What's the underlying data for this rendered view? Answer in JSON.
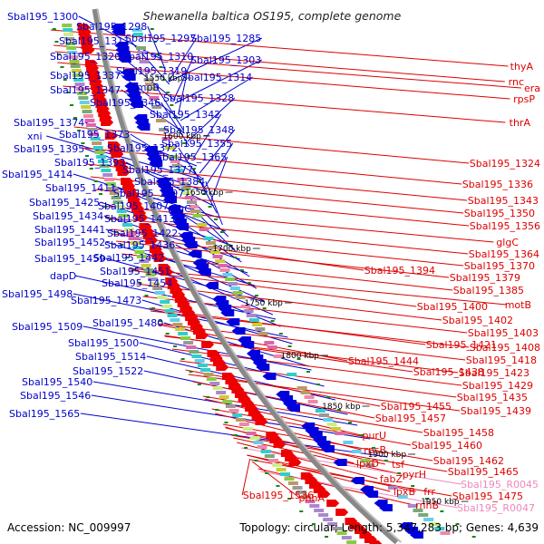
{
  "title": "Shewanella baltica OS195, complete genome",
  "accession": "Accession: NC_009997",
  "topology": "Topology: circular; Length: 5,347,283 bp; Genes: 4,639",
  "colors": {
    "left_labels": "#0000cc",
    "right_labels": "#dd0000",
    "rna_labels": "#ee88bb",
    "backbone": "#888888",
    "forward_genes": "#ee0000",
    "reverse_genes": "#0000dd",
    "tick_marks": "#118811"
  },
  "kbp_ticks": [
    "1550 kbp",
    "1600 kbp",
    "1650 kbp",
    "1700 kbp",
    "1750 kbp",
    "1800 kbp",
    "1850 kbp",
    "1900 kbp",
    "1950 kbp"
  ],
  "left_labels": [
    "Sbal195_1300",
    "Sbal195_1298",
    "Sbal195_1311",
    "Sbal195_1297",
    "Sbal195_1285",
    "Sbal195_1320",
    "Sbal195_1310",
    "Sbal195_1303",
    "Sbal195_1319",
    "Sbal195_1337",
    "Sbal195_1314",
    "smpB",
    "Sbal195_1347",
    "Sbal195_1328",
    "Sbal195_1346",
    "Sbal195_1342",
    "Sbal195_1374",
    "Sbal195_1348",
    "xni",
    "Sbal195_1373",
    "Sbal195_1355",
    "Sbal195_1395",
    "Sbal195_1372",
    "Sbal195_1365",
    "Sbal195_1393",
    "Sbal195_1377",
    "Sbal195_1414",
    "Sbal195_1384",
    "Sbal195_1411",
    "Sbal195_1397",
    "Sbal195_1425",
    "Sbal195_1407",
    "rdgC",
    "Sbal195_1434",
    "Sbal195_1413",
    "Sbal195_1441",
    "Sbal195_1422",
    "Sbal195_1452",
    "Sbal195_1436",
    "Sbal195_1459",
    "Sbal195_1442",
    "Sbal195_1451",
    "dapD",
    "Sbal195_1454",
    "Sbal195_1498",
    "Sbal195_1473",
    "Sbal195_1480",
    "Sbal195_1509",
    "Sbal195_1500",
    "Sbal195_1514",
    "Sbal195_1522",
    "Sbal195_1540",
    "Sbal195_1546",
    "Sbal195_1565"
  ],
  "right_labels": [
    "thyA",
    "rnc",
    "era",
    "rpsP",
    "thrA",
    "Sbal195_1324",
    "Sbal195_1336",
    "Sbal195_1343",
    "Sbal195_1350",
    "Sbal195_1356",
    "glgC",
    "Sbal195_1364",
    "Sbal195_1394",
    "Sbal195_1370",
    "Sbal195_1379",
    "Sbal195_1385",
    "motB",
    "Sbal195_1400",
    "Sbal195_1402",
    "Sbal195_1403",
    "Sbal195_1421",
    "Sbal195_1408",
    "Sbal195_1444",
    "Sbal195_1418",
    "Sbal195_1438",
    "Sbal195_1423",
    "Sbal195_1429",
    "Sbal195_1435",
    "Sbal195_1455",
    "Sbal195_1439",
    "Sbal195_1457",
    "Sbal195_1458",
    "purU",
    "Sbal195_1460",
    "rpsB",
    "Sbal195_1462",
    "lpxD",
    "tsf",
    "Sbal195_1465",
    "pyrH",
    "fabZ",
    "frr",
    "Sbal195_1475",
    "lpxB",
    "rnhB",
    "Sbal195_1536",
    "phhA"
  ],
  "rna_labels": [
    "Sbal195_R0045",
    "Sbal195_R0047"
  ]
}
